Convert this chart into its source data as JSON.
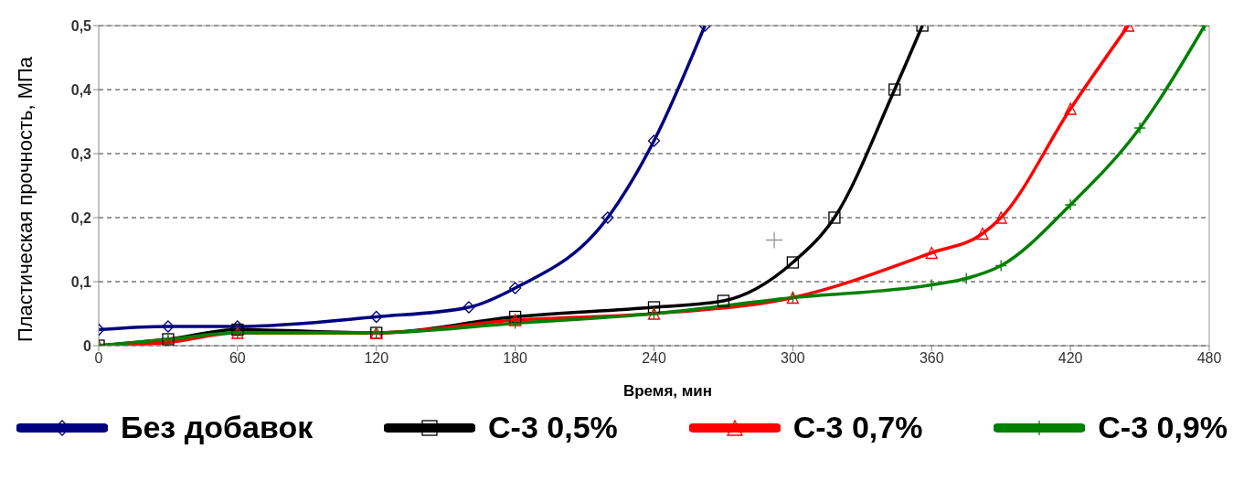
{
  "chart_data": {
    "type": "line",
    "xlabel": "Время, мин",
    "ylabel": "Пластическая прочность, МПа",
    "xlim": [
      0,
      480
    ],
    "xticks": [
      0,
      60,
      120,
      180,
      240,
      300,
      360,
      420,
      480
    ],
    "ylim": [
      0,
      0.5
    ],
    "yticks": [
      {
        "value": 0,
        "label": "0"
      },
      {
        "value": 0.1,
        "label": "0,1"
      },
      {
        "value": 0.2,
        "label": "0,2"
      },
      {
        "value": 0.3,
        "label": "0,3"
      },
      {
        "value": 0.4,
        "label": "0,4"
      },
      {
        "value": 0.5,
        "label": "0,5"
      }
    ],
    "grid": "y",
    "legend": "bottom",
    "line_style": "solid",
    "series": [
      {
        "name": "Без добавок",
        "color": "#000080",
        "marker": "diamond",
        "x": [
          0,
          30,
          60,
          120,
          160,
          180,
          220,
          240,
          262
        ],
        "values": [
          0.025,
          0.03,
          0.03,
          0.045,
          0.06,
          0.09,
          0.2,
          0.32,
          0.5
        ]
      },
      {
        "name": "С-3  0,5%",
        "color": "#000000",
        "marker": "square",
        "x": [
          0,
          30,
          60,
          120,
          180,
          240,
          270,
          300,
          318,
          344,
          356
        ],
        "values": [
          0,
          0.01,
          0.025,
          0.02,
          0.045,
          0.06,
          0.07,
          0.13,
          0.2,
          0.4,
          0.5
        ]
      },
      {
        "name": "С-3 0,7%",
        "color": "#ff0000",
        "marker": "triangle",
        "x": [
          0,
          30,
          60,
          120,
          180,
          240,
          300,
          360,
          382,
          390,
          420,
          445
        ],
        "values": [
          0,
          0.005,
          0.02,
          0.02,
          0.04,
          0.05,
          0.075,
          0.145,
          0.175,
          0.2,
          0.37,
          0.5
        ]
      },
      {
        "name": "С-3 0,9%",
        "color": "#008000",
        "marker": "cross",
        "x": [
          0,
          30,
          60,
          120,
          180,
          240,
          300,
          360,
          375,
          390,
          420,
          450,
          478
        ],
        "values": [
          0,
          0.01,
          0.02,
          0.02,
          0.035,
          0.05,
          0.075,
          0.095,
          0.105,
          0.125,
          0.22,
          0.34,
          0.5
        ]
      },
      {
        "type": "scatter",
        "color": "#999999",
        "marker": "cross",
        "x": [
          292
        ],
        "values": [
          0.165
        ]
      }
    ]
  }
}
